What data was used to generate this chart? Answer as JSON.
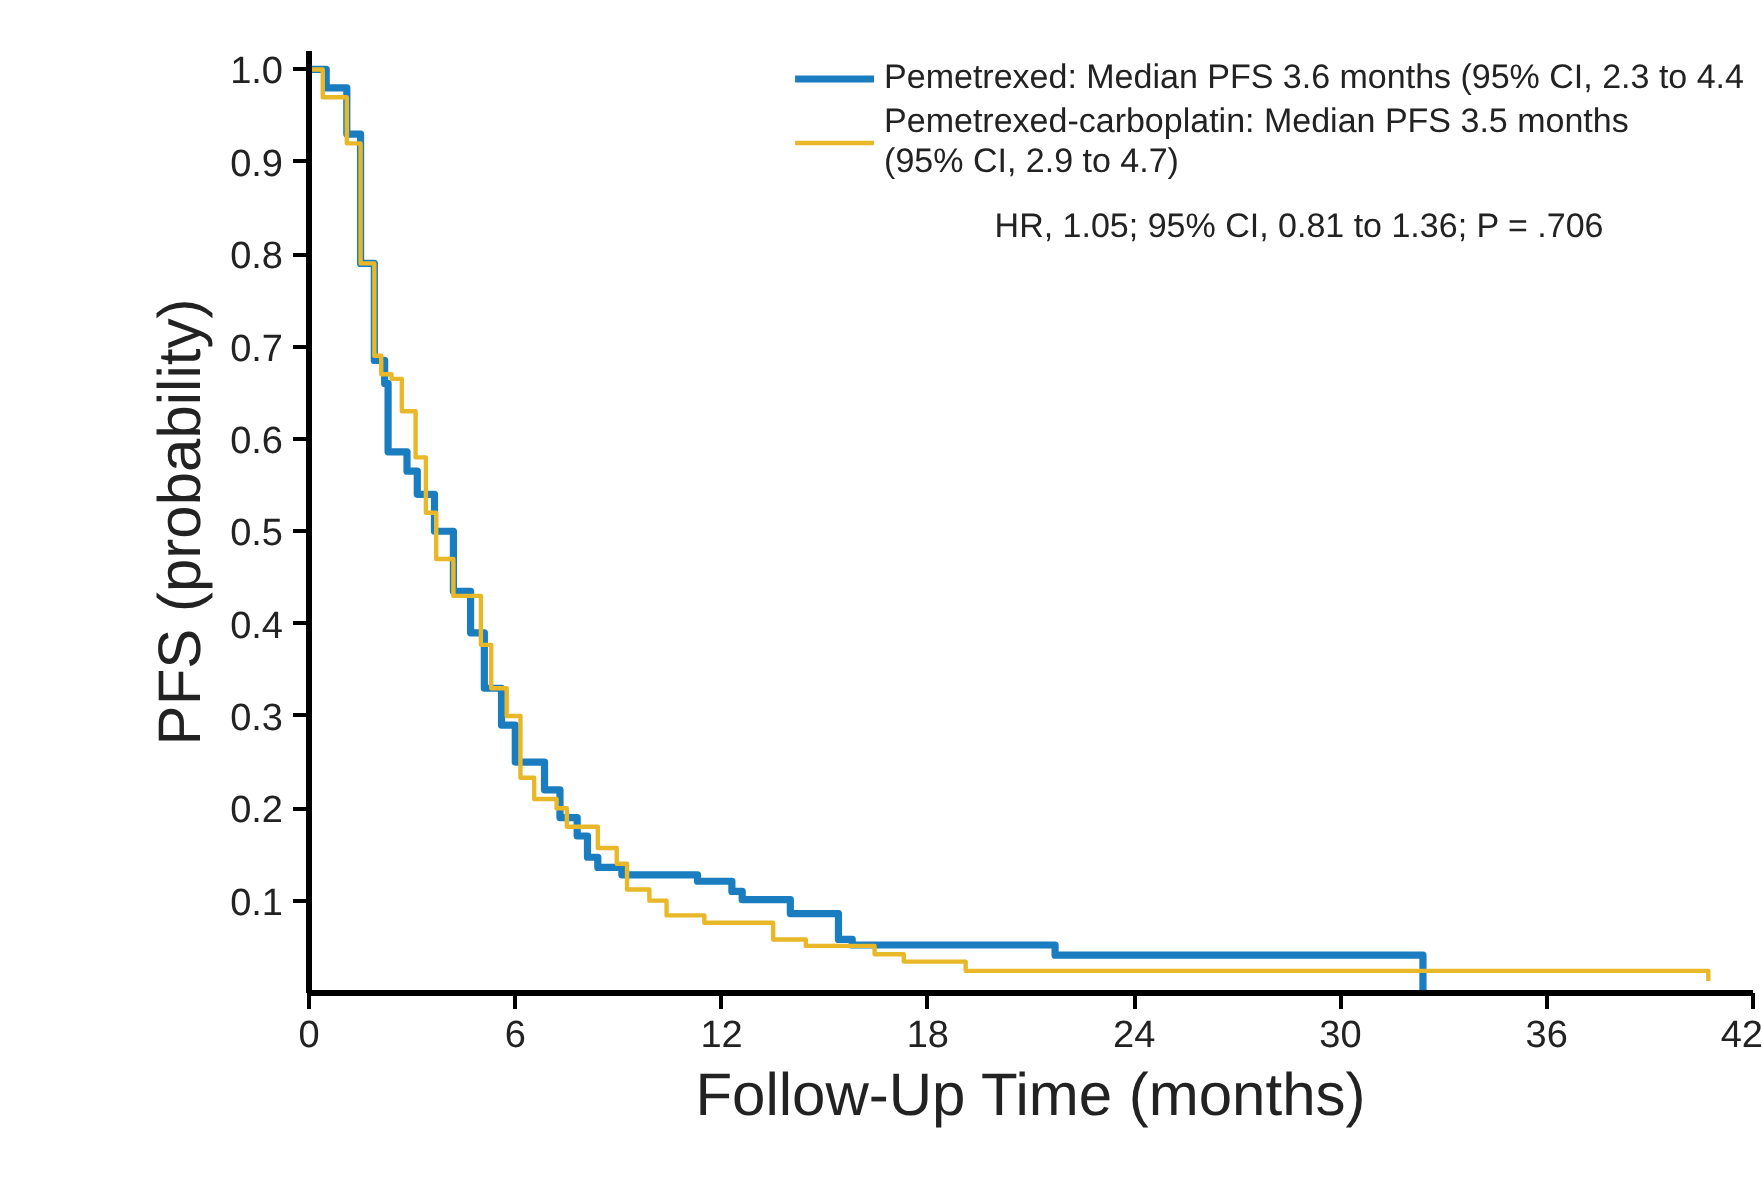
{
  "chart_data": {
    "type": "step",
    "xlabel": "Follow-Up Time (months)",
    "ylabel": "PFS (probability)",
    "xlim": [
      0,
      42
    ],
    "ylim": [
      0,
      1.02
    ],
    "xticks": [
      0,
      6,
      12,
      18,
      24,
      30,
      36,
      42
    ],
    "yticks": [
      0.1,
      0.2,
      0.3,
      0.4,
      0.5,
      0.6,
      0.7,
      0.8,
      0.9,
      {
        "value": 1,
        "label": "1.0"
      }
    ],
    "grid": false,
    "legend": "top right",
    "marker": "none",
    "line_style": "solid",
    "annotations": [
      "HR, 1.05; 95% CI, 0.81 to 1.36; P = .706"
    ],
    "series": [
      {
        "name": "Pemetrexed: Median PFS 3.6 months (95% CI, 2.3 to 4.4",
        "color": "#1a7dc0",
        "x": [
          0,
          0.5,
          1.1,
          1.5,
          1.9,
          2.2,
          2.3,
          2.85,
          3.15,
          3.65,
          4.2,
          4.7,
          5.1,
          5.6,
          6.0,
          6.85,
          7.3,
          7.8,
          8.1,
          8.4,
          9.1,
          11.3,
          12.3,
          12.6,
          14.0,
          15.4,
          15.8,
          21.7,
          32.4
        ],
        "values": [
          1.0,
          0.98,
          0.93,
          0.79,
          0.685,
          0.66,
          0.586,
          0.565,
          0.54,
          0.5,
          0.435,
          0.39,
          0.33,
          0.29,
          0.25,
          0.22,
          0.19,
          0.17,
          0.147,
          0.136,
          0.128,
          0.121,
          0.11,
          0.101,
          0.086,
          0.058,
          0.052,
          0.041,
          0.0
        ]
      },
      {
        "name": "Pemetrexed-carboplatin: Median PFS 3.5 months\n(95% CI, 2.9 to 4.7)",
        "color": "#e8b828",
        "x": [
          0,
          0.4,
          1.1,
          1.5,
          1.9,
          2.1,
          2.4,
          2.7,
          3.1,
          3.4,
          3.7,
          4.2,
          5.0,
          5.3,
          5.75,
          6.15,
          6.55,
          7.2,
          7.5,
          8.4,
          8.95,
          9.25,
          9.9,
          10.4,
          11.5,
          13.5,
          14.45,
          16.45,
          17.3,
          19.1,
          40.7
        ],
        "values": [
          1.0,
          0.97,
          0.92,
          0.79,
          0.69,
          0.67,
          0.665,
          0.63,
          0.58,
          0.52,
          0.47,
          0.43,
          0.377,
          0.33,
          0.3,
          0.233,
          0.21,
          0.2,
          0.18,
          0.157,
          0.14,
          0.112,
          0.1,
          0.084,
          0.076,
          0.058,
          0.051,
          0.042,
          0.034,
          0.024,
          0.013
        ]
      }
    ]
  }
}
